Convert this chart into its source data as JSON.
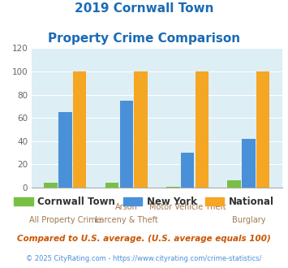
{
  "title_line1": "2019 Cornwall Town",
  "title_line2": "Property Crime Comparison",
  "cat_labels": [
    "All Property Crime",
    "Arson\nLarceny & Theft",
    "Motor Vehicle Theft",
    "Burglary"
  ],
  "cat_labels_top": [
    "",
    "Arson",
    "Motor Vehicle Theft",
    ""
  ],
  "cat_labels_bot": [
    "All Property Crime",
    "Larceny & Theft",
    "",
    "Burglary"
  ],
  "cornwall_values": [
    4,
    4,
    1,
    6
  ],
  "newyork_values": [
    65,
    75,
    30,
    42
  ],
  "national_values": [
    100,
    100,
    100,
    100
  ],
  "cornwall_color": "#77c043",
  "newyork_color": "#4a90d9",
  "national_color": "#f5a623",
  "ylim": [
    0,
    120
  ],
  "yticks": [
    0,
    20,
    40,
    60,
    80,
    100,
    120
  ],
  "bg_color": "#ddeef5",
  "title_color": "#1a6bb5",
  "legend_labels": [
    "Cornwall Town",
    "New York",
    "National"
  ],
  "footnote1": "Compared to U.S. average. (U.S. average equals 100)",
  "footnote2": "© 2025 CityRating.com - https://www.cityrating.com/crime-statistics/",
  "footnote1_color": "#cc5500",
  "footnote2_color": "#4a90d9",
  "xlabel_color": "#a07850"
}
